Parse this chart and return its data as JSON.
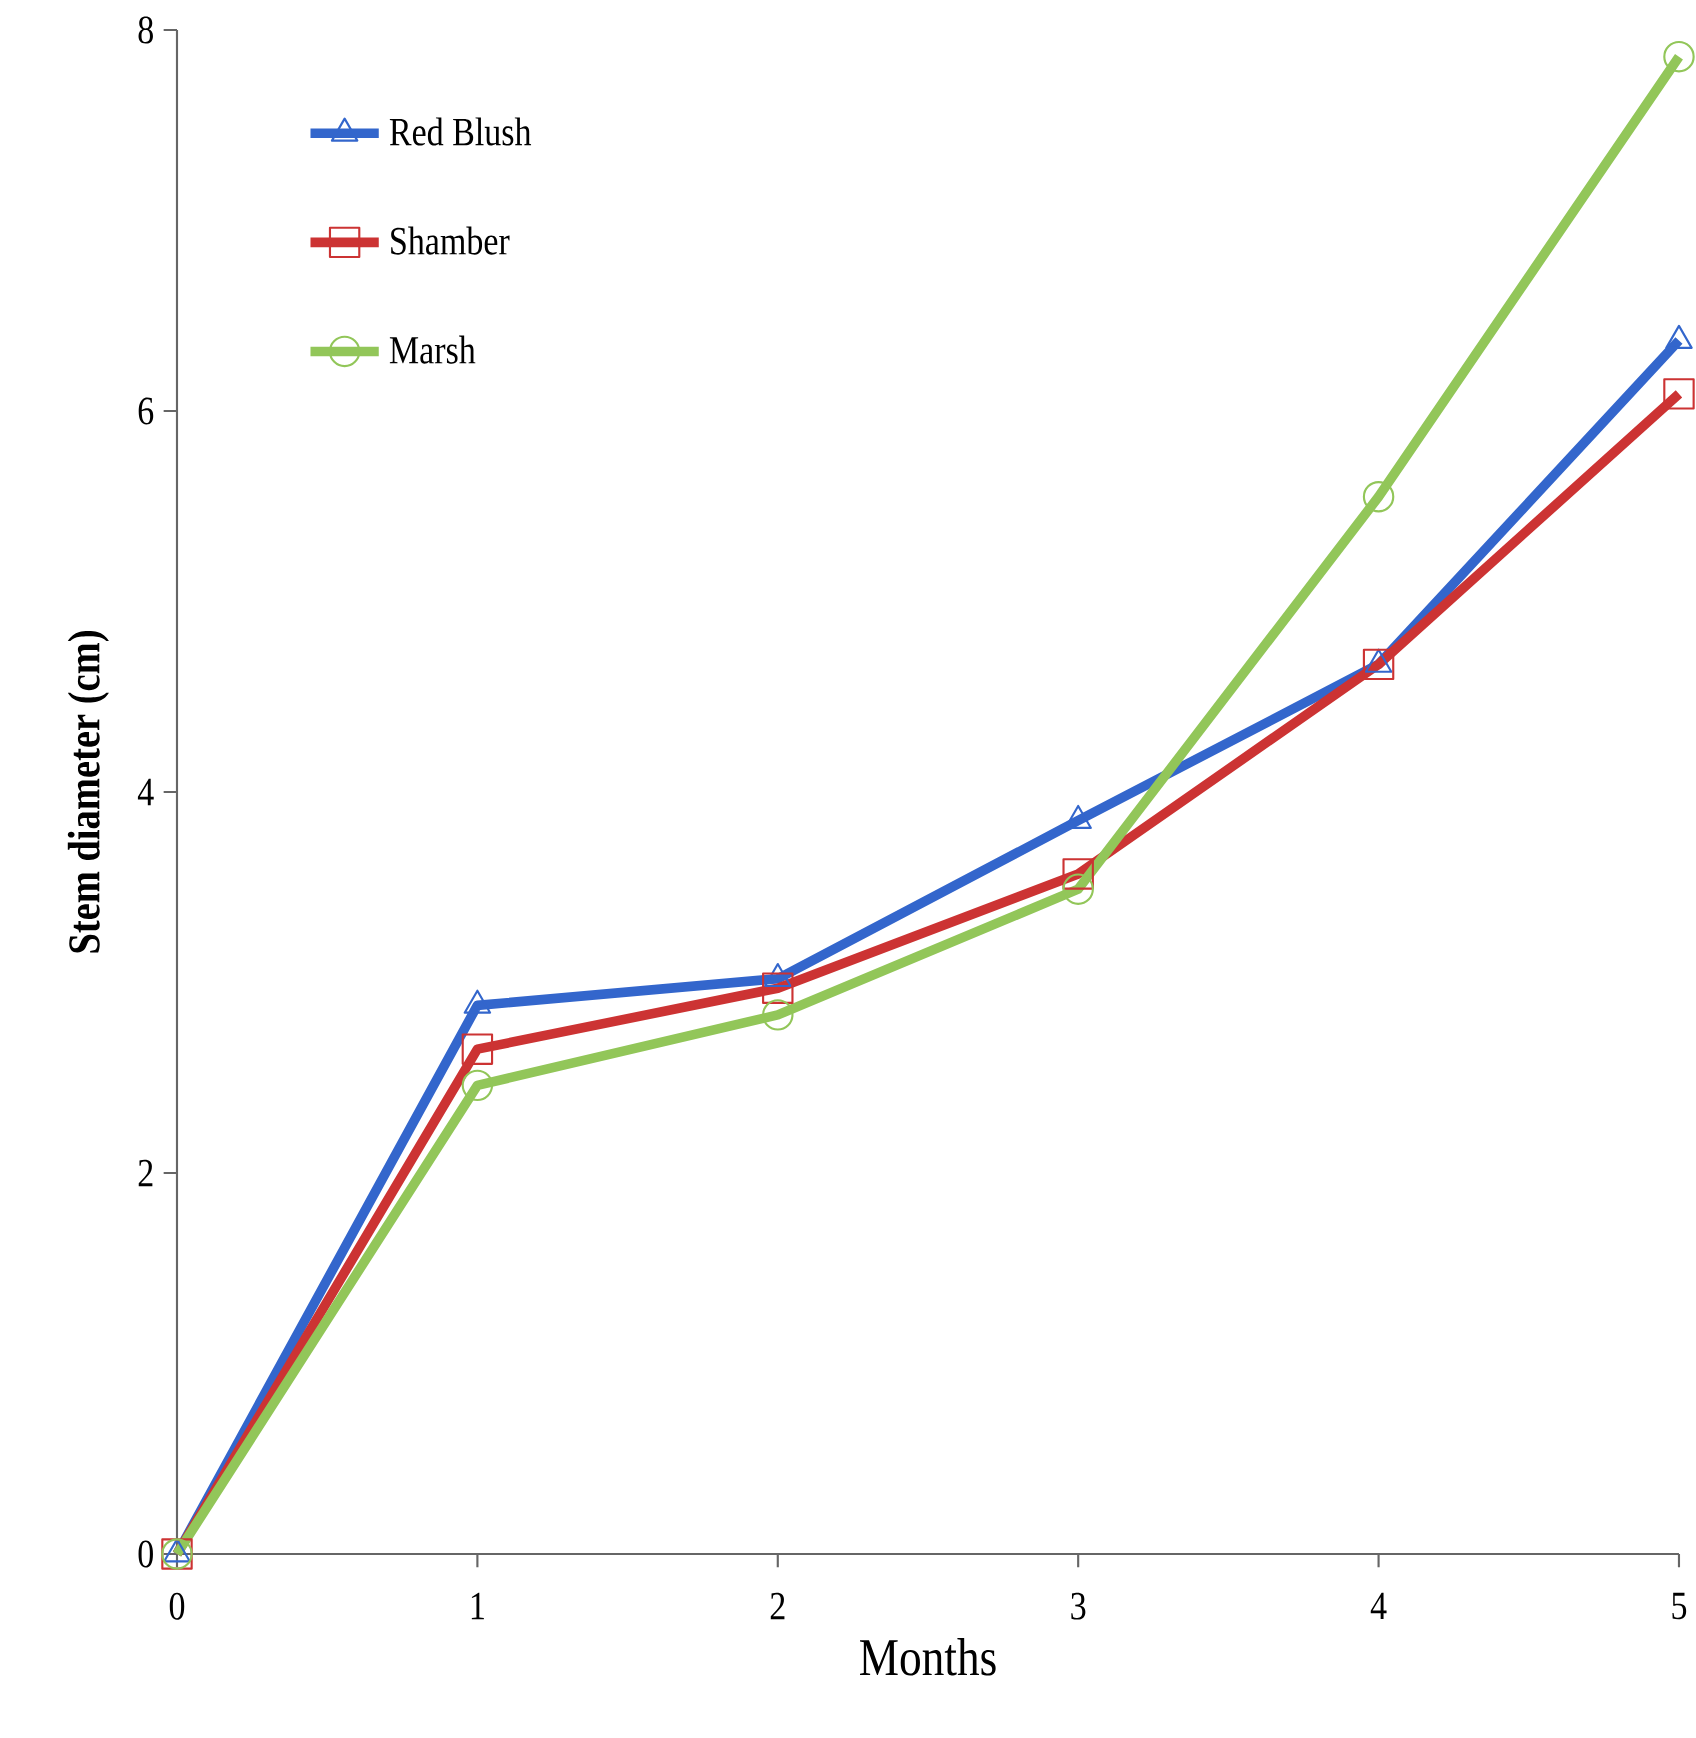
{
  "chart_data": {
    "type": "line",
    "xlabel": "Months",
    "ylabel": "Stem diameter (cm)",
    "x": [
      0,
      1,
      2,
      3,
      4,
      5
    ],
    "series": [
      {
        "name": "Red Blush",
        "color": "#3366cc",
        "marker": "triangle",
        "values": [
          0,
          2.88,
          3.02,
          3.85,
          4.67,
          6.37
        ]
      },
      {
        "name": "Shamber",
        "color": "#cc3333",
        "marker": "square",
        "values": [
          0,
          2.65,
          2.97,
          3.57,
          4.67,
          6.09
        ]
      },
      {
        "name": "Marsh",
        "color": "#92c659",
        "marker": "circle",
        "values": [
          0,
          2.46,
          2.83,
          3.49,
          5.55,
          7.86
        ]
      }
    ],
    "xlim": [
      0,
      5
    ],
    "xticks": [
      0,
      1,
      2,
      3,
      4,
      5
    ],
    "ylim": [
      0,
      8
    ],
    "yticks": [
      0,
      2,
      4,
      6,
      8
    ],
    "legend": "top left",
    "grid": false,
    "line_style": "solid"
  }
}
